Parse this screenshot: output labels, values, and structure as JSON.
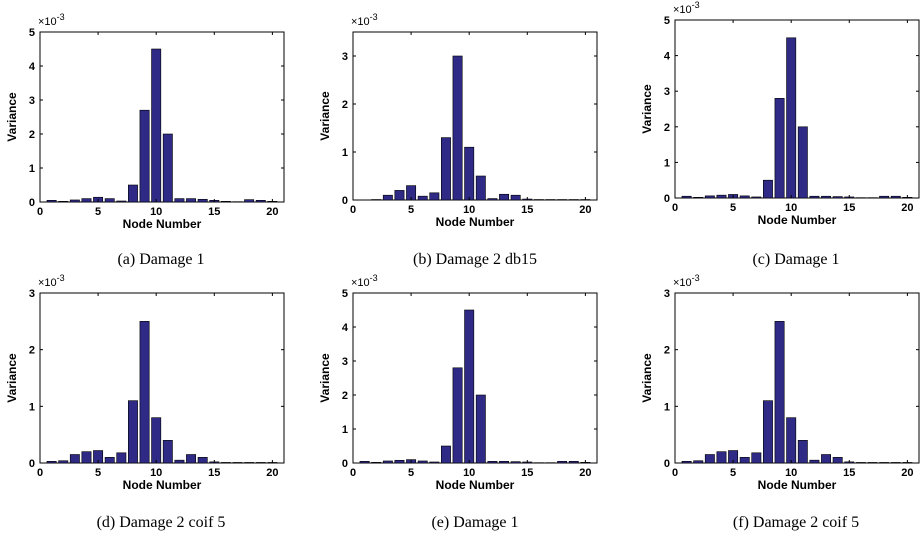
{
  "chart_data": [
    {
      "type": "bar",
      "caption": "(a) Damage 1",
      "xlabel": "Node Number",
      "ylabel": "Variance",
      "y_multiplier": "×10",
      "y_exponent": "-3",
      "x": [
        1,
        2,
        3,
        4,
        5,
        6,
        7,
        8,
        9,
        10,
        11,
        12,
        13,
        14,
        15,
        16,
        17,
        18,
        19,
        20
      ],
      "values": [
        0.05,
        0.02,
        0.06,
        0.1,
        0.14,
        0.1,
        0.03,
        0.5,
        2.7,
        4.5,
        2.0,
        0.1,
        0.1,
        0.08,
        0.05,
        0.02,
        0.01,
        0.07,
        0.05,
        0.02
      ],
      "xlim": [
        0,
        21
      ],
      "ylim": [
        0,
        5
      ],
      "xticks": [
        0,
        5,
        10,
        15,
        20
      ],
      "yticks": [
        0,
        1,
        2,
        3,
        4,
        5
      ],
      "color": "#2e2a86"
    },
    {
      "type": "bar",
      "caption": "(b) Damage 2 db15",
      "xlabel": "Node Number",
      "ylabel": "Variance",
      "y_multiplier": "×10",
      "y_exponent": "-3",
      "x": [
        1,
        2,
        3,
        4,
        5,
        6,
        7,
        8,
        9,
        10,
        11,
        12,
        13,
        14,
        15,
        16,
        17,
        18,
        19,
        20
      ],
      "values": [
        0.0,
        0.01,
        0.1,
        0.2,
        0.3,
        0.08,
        0.15,
        1.3,
        3.0,
        1.1,
        0.5,
        0.03,
        0.12,
        0.1,
        0.02,
        0.01,
        0.01,
        0.01,
        0.01,
        0.01
      ],
      "xlim": [
        0,
        21
      ],
      "ylim": [
        0,
        3.5
      ],
      "xticks": [
        0,
        5,
        10,
        15,
        20
      ],
      "yticks": [
        0,
        1,
        2,
        3
      ],
      "color": "#2e2a86"
    },
    {
      "type": "bar",
      "caption": "(c) Damage 1",
      "xlabel": "Node Number",
      "ylabel": "Variance",
      "y_multiplier": "×10",
      "y_exponent": "-3",
      "x": [
        1,
        2,
        3,
        4,
        5,
        6,
        7,
        8,
        9,
        10,
        11,
        12,
        13,
        14,
        15,
        16,
        17,
        18,
        19,
        20
      ],
      "values": [
        0.05,
        0.02,
        0.06,
        0.08,
        0.1,
        0.06,
        0.03,
        0.5,
        2.8,
        4.5,
        2.0,
        0.05,
        0.05,
        0.04,
        0.03,
        0.01,
        0.01,
        0.05,
        0.05,
        0.02
      ],
      "xlim": [
        0,
        21
      ],
      "ylim": [
        0,
        5
      ],
      "xticks": [
        0,
        5,
        10,
        15,
        20
      ],
      "yticks": [
        0,
        1,
        2,
        3,
        4,
        5
      ],
      "color": "#2e2a86"
    },
    {
      "type": "bar",
      "caption": "(d) Damage 2 coif 5",
      "xlabel": "Node Number",
      "ylabel": "Variance",
      "y_multiplier": "×10",
      "y_exponent": "-3",
      "x": [
        1,
        2,
        3,
        4,
        5,
        6,
        7,
        8,
        9,
        10,
        11,
        12,
        13,
        14,
        15,
        16,
        17,
        18,
        19,
        20
      ],
      "values": [
        0.03,
        0.04,
        0.15,
        0.2,
        0.22,
        0.1,
        0.18,
        1.1,
        2.5,
        0.8,
        0.4,
        0.05,
        0.15,
        0.1,
        0.02,
        0.01,
        0.01,
        0.01,
        0.01,
        0.01
      ],
      "xlim": [
        0,
        21
      ],
      "ylim": [
        0,
        3
      ],
      "xticks": [
        0,
        5,
        10,
        15,
        20
      ],
      "yticks": [
        0,
        1,
        2,
        3
      ],
      "color": "#2e2a86"
    },
    {
      "type": "bar",
      "caption": "(e) Damage 1",
      "xlabel": "Node Number",
      "ylabel": "Variance",
      "y_multiplier": "×10",
      "y_exponent": "-3",
      "x": [
        1,
        2,
        3,
        4,
        5,
        6,
        7,
        8,
        9,
        10,
        11,
        12,
        13,
        14,
        15,
        16,
        17,
        18,
        19,
        20
      ],
      "values": [
        0.05,
        0.02,
        0.06,
        0.08,
        0.1,
        0.06,
        0.03,
        0.5,
        2.8,
        4.5,
        2.0,
        0.05,
        0.05,
        0.04,
        0.03,
        0.01,
        0.01,
        0.05,
        0.05,
        0.02
      ],
      "xlim": [
        0,
        21
      ],
      "ylim": [
        0,
        5
      ],
      "xticks": [
        0,
        5,
        10,
        15,
        20
      ],
      "yticks": [
        0,
        1,
        2,
        3,
        4,
        5
      ],
      "color": "#2e2a86"
    },
    {
      "type": "bar",
      "caption": "(f) Damage 2 coif 5",
      "xlabel": "Node Number",
      "ylabel": "Variance",
      "y_multiplier": "×10",
      "y_exponent": "-3",
      "x": [
        1,
        2,
        3,
        4,
        5,
        6,
        7,
        8,
        9,
        10,
        11,
        12,
        13,
        14,
        15,
        16,
        17,
        18,
        19,
        20
      ],
      "values": [
        0.03,
        0.04,
        0.15,
        0.2,
        0.22,
        0.1,
        0.18,
        1.1,
        2.5,
        0.8,
        0.4,
        0.05,
        0.15,
        0.1,
        0.02,
        0.01,
        0.01,
        0.01,
        0.01,
        0.01
      ],
      "xlim": [
        0,
        21
      ],
      "ylim": [
        0,
        3
      ],
      "xticks": [
        0,
        5,
        10,
        15,
        20
      ],
      "yticks": [
        0,
        1,
        2,
        3
      ],
      "color": "#2e2a86"
    }
  ]
}
